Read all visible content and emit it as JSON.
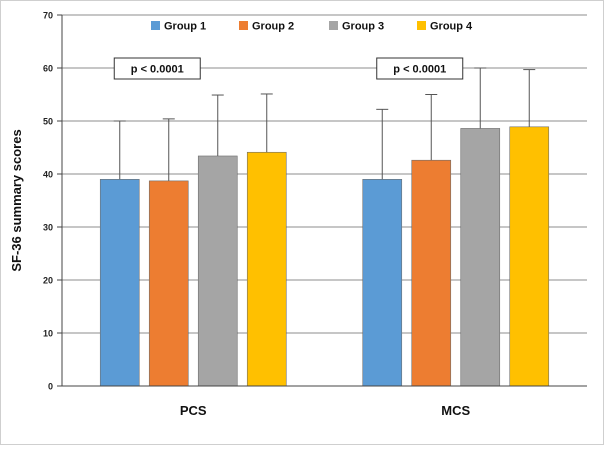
{
  "chart_data": {
    "type": "bar",
    "title": "",
    "xlabel": "",
    "ylabel": "SF-36 summary scores",
    "categories": [
      "PCS",
      "MCS"
    ],
    "ylim": [
      0,
      70
    ],
    "yticks": [
      0,
      10,
      20,
      30,
      40,
      50,
      60,
      70
    ],
    "grid": true,
    "legend_position": "top",
    "series": [
      {
        "name": "Group 1",
        "color": "#5b9bd5",
        "values": [
          39.0,
          39.0
        ],
        "error_upper": [
          50.0,
          52.2
        ]
      },
      {
        "name": "Group 2",
        "color": "#ed7d31",
        "values": [
          38.7,
          42.6
        ],
        "error_upper": [
          50.4,
          55.0
        ]
      },
      {
        "name": "Group 3",
        "color": "#a5a5a5",
        "values": [
          43.4,
          48.6
        ],
        "error_upper": [
          54.9,
          60.0
        ]
      },
      {
        "name": "Group 4",
        "color": "#ffc000",
        "values": [
          44.1,
          48.9
        ],
        "error_upper": [
          55.1,
          59.7
        ]
      }
    ],
    "annotations": [
      {
        "text": "p < 0.0001",
        "category": "PCS"
      },
      {
        "text": "p < 0.0001",
        "category": "MCS"
      }
    ]
  }
}
